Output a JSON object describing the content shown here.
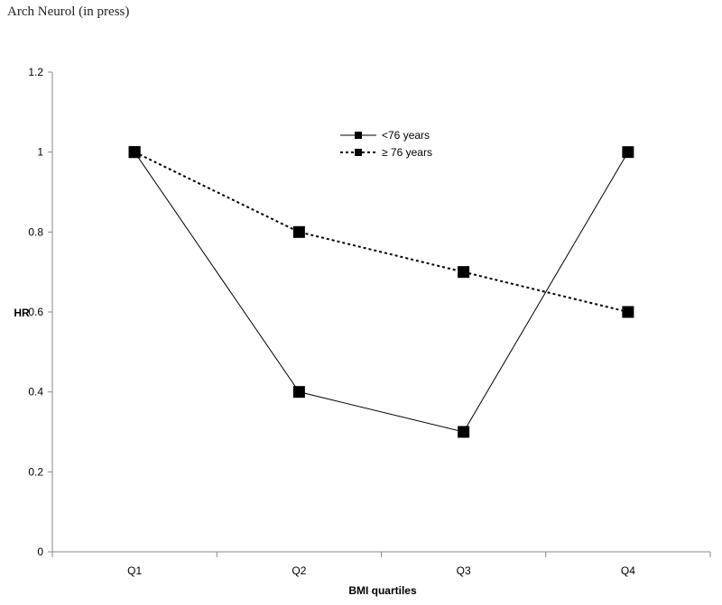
{
  "header": {
    "text": "Arch Neurol (in press)"
  },
  "chart_data": {
    "type": "line",
    "categories": [
      "Q1",
      "Q2",
      "Q3",
      "Q4"
    ],
    "series": [
      {
        "name": "<76 years",
        "values": [
          1.0,
          0.4,
          0.3,
          1.0
        ],
        "line_style": "solid"
      },
      {
        "name": "≥ 76 years",
        "values": [
          1.0,
          0.8,
          0.7,
          0.6
        ],
        "line_style": "dotted"
      }
    ],
    "xlabel": "BMI quartiles",
    "ylabel": "HR",
    "ylim": [
      0,
      1.2
    ],
    "yticks": [
      "0",
      "0.2",
      "0.4",
      "0.6",
      "0.8",
      "1",
      "1.2"
    ],
    "grid": false,
    "legend_position": "top-center",
    "colors": {
      "series": "#000000",
      "axis": "#888888"
    }
  }
}
